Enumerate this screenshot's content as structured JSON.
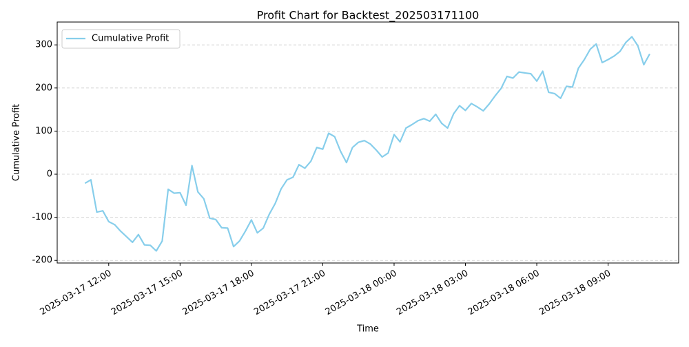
{
  "chart_data": {
    "type": "line",
    "title": "Profit Chart for Backtest_202503171100",
    "x_label": "Time",
    "y_label": "Cumulative Profit",
    "x": [
      "2025-03-17 11:00",
      "2025-03-17 11:15",
      "2025-03-17 11:30",
      "2025-03-17 11:45",
      "2025-03-17 12:00",
      "2025-03-17 12:15",
      "2025-03-17 12:30",
      "2025-03-17 12:45",
      "2025-03-17 13:00",
      "2025-03-17 13:15",
      "2025-03-17 13:30",
      "2025-03-17 13:45",
      "2025-03-17 14:00",
      "2025-03-17 14:15",
      "2025-03-17 14:30",
      "2025-03-17 14:45",
      "2025-03-17 15:00",
      "2025-03-17 15:15",
      "2025-03-17 15:30",
      "2025-03-17 15:45",
      "2025-03-17 16:00",
      "2025-03-17 16:15",
      "2025-03-17 16:30",
      "2025-03-17 16:45",
      "2025-03-17 17:00",
      "2025-03-17 17:15",
      "2025-03-17 17:30",
      "2025-03-17 17:45",
      "2025-03-17 18:00",
      "2025-03-17 18:15",
      "2025-03-17 18:30",
      "2025-03-17 18:45",
      "2025-03-17 19:00",
      "2025-03-17 19:15",
      "2025-03-17 19:30",
      "2025-03-17 19:45",
      "2025-03-17 20:00",
      "2025-03-17 20:15",
      "2025-03-17 20:30",
      "2025-03-17 20:45",
      "2025-03-17 21:00",
      "2025-03-17 21:15",
      "2025-03-17 21:30",
      "2025-03-17 21:45",
      "2025-03-17 22:00",
      "2025-03-17 22:15",
      "2025-03-17 22:30",
      "2025-03-17 22:45",
      "2025-03-17 23:00",
      "2025-03-17 23:15",
      "2025-03-17 23:30",
      "2025-03-17 23:45",
      "2025-03-18 00:00",
      "2025-03-18 00:15",
      "2025-03-18 00:30",
      "2025-03-18 00:45",
      "2025-03-18 01:00",
      "2025-03-18 01:15",
      "2025-03-18 01:30",
      "2025-03-18 01:45",
      "2025-03-18 02:00",
      "2025-03-18 02:15",
      "2025-03-18 02:30",
      "2025-03-18 02:45",
      "2025-03-18 03:00",
      "2025-03-18 03:15",
      "2025-03-18 03:30",
      "2025-03-18 03:45",
      "2025-03-18 04:00",
      "2025-03-18 04:15",
      "2025-03-18 04:30",
      "2025-03-18 04:45",
      "2025-03-18 05:00",
      "2025-03-18 05:15",
      "2025-03-18 05:30",
      "2025-03-18 05:45",
      "2025-03-18 06:00",
      "2025-03-18 06:15",
      "2025-03-18 06:30",
      "2025-03-18 06:45",
      "2025-03-18 07:00",
      "2025-03-18 07:15",
      "2025-03-18 07:30",
      "2025-03-18 07:45",
      "2025-03-18 08:00",
      "2025-03-18 08:15",
      "2025-03-18 08:30",
      "2025-03-18 08:45",
      "2025-03-18 09:00",
      "2025-03-18 09:15",
      "2025-03-18 09:30",
      "2025-03-18 09:45",
      "2025-03-18 10:00",
      "2025-03-18 10:15",
      "2025-03-18 10:30",
      "2025-03-18 10:45"
    ],
    "series": [
      {
        "name": "Cumulative Profit",
        "color": "#87ceeb",
        "values": [
          -21,
          -13,
          -88,
          -85,
          -110,
          -117,
          -132,
          -145,
          -158,
          -140,
          -164,
          -165,
          -178,
          -155,
          -35,
          -44,
          -43,
          -72,
          20,
          -41,
          -57,
          -102,
          -105,
          -124,
          -125,
          -168,
          -155,
          -132,
          -106,
          -136,
          -125,
          -93,
          -68,
          -34,
          -13,
          -7,
          22,
          14,
          30,
          62,
          58,
          95,
          87,
          53,
          27,
          62,
          74,
          78,
          70,
          56,
          40,
          49,
          92,
          75,
          107,
          115,
          124,
          129,
          123,
          139,
          118,
          107,
          140,
          159,
          148,
          164,
          156,
          147,
          163,
          182,
          199,
          227,
          223,
          237,
          235,
          233,
          216,
          239,
          190,
          187,
          176,
          204,
          202,
          246,
          266,
          290,
          302,
          259,
          266,
          274,
          285,
          306,
          319,
          298,
          254,
          279
        ]
      }
    ],
    "xlim": [
      "2025-03-17 09:50",
      "2025-03-18 11:58"
    ],
    "xticks": [
      "2025-03-17 12:00",
      "2025-03-17 15:00",
      "2025-03-17 18:00",
      "2025-03-17 21:00",
      "2025-03-18 00:00",
      "2025-03-18 03:00",
      "2025-03-18 06:00",
      "2025-03-18 09:00"
    ],
    "ylim": [
      -206,
      353
    ],
    "yticks": [
      -200,
      -100,
      0,
      100,
      200,
      300
    ],
    "grid": "y",
    "legend": "upper left"
  }
}
